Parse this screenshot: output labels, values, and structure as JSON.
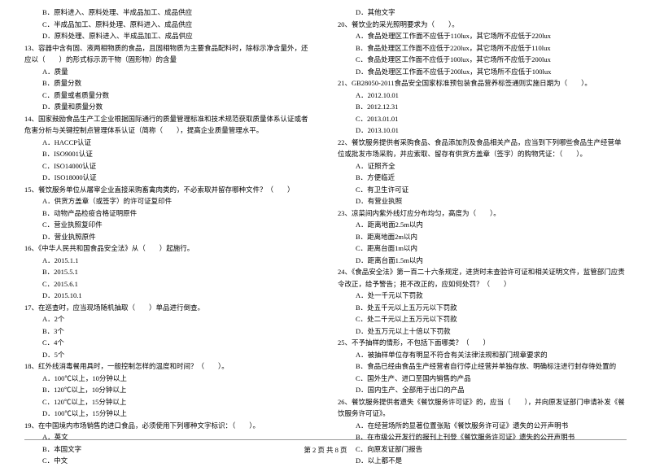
{
  "left": {
    "lines": [
      {
        "cls": "opt",
        "t": "B．原料进入、原料处理、半成品加工、成品供应"
      },
      {
        "cls": "opt",
        "t": "C．半成品加工、原料处理、原料进入、成品供应"
      },
      {
        "cls": "opt",
        "t": "D．原料处理、原料进入、半成品加工、成品供应"
      },
      {
        "cls": "q",
        "t": "13、容器中含有固、液两相物质的食品，且固相物质为主要食品配料时，除标示净含量外，还应以（　　）的形式标示沥干物（固形物）的含量"
      },
      {
        "cls": "opt",
        "t": "A．质量"
      },
      {
        "cls": "opt",
        "t": "B．质量分数"
      },
      {
        "cls": "opt",
        "t": "C．质量或者质量分数"
      },
      {
        "cls": "opt",
        "t": "D．质量和质量分数"
      },
      {
        "cls": "q",
        "t": "14、国家鼓励食品生产工企业根据国际通行的质量管理标准和技术规范获取质量体系认证或者危害分析与关键控制点管理体系认证（简称（　　），提高企业质量管理水平。"
      },
      {
        "cls": "opt",
        "t": "A．HACCP认证"
      },
      {
        "cls": "opt",
        "t": "B．ISO9001认证"
      },
      {
        "cls": "opt",
        "t": "C．ISO14000认证"
      },
      {
        "cls": "opt",
        "t": "D．ISO18000认证"
      },
      {
        "cls": "q",
        "t": "15、餐饮服务单位从屠宰企业直接采购畜禽肉类的，不必索取并留存哪种文件？（　　）"
      },
      {
        "cls": "opt",
        "t": "A．供货方盖章（或签字）的许可证复印件"
      },
      {
        "cls": "opt",
        "t": "B．动物产品检疫合格证明原件"
      },
      {
        "cls": "opt",
        "t": "C．营业执照复印件"
      },
      {
        "cls": "opt",
        "t": "D．营业执照原件"
      },
      {
        "cls": "q",
        "t": "16、《中华人民共和国食品安全法》从（　　）起施行。"
      },
      {
        "cls": "opt",
        "t": "A．2015.1.1"
      },
      {
        "cls": "opt",
        "t": "B．2015.5.1"
      },
      {
        "cls": "opt",
        "t": "C．2015.6.1"
      },
      {
        "cls": "opt",
        "t": "D．2015.10.1"
      },
      {
        "cls": "q",
        "t": "17、在巡查时，应当现场随机抽取（　　）单品进行倒查。"
      },
      {
        "cls": "opt",
        "t": "A．2个"
      },
      {
        "cls": "opt",
        "t": "B．3个"
      },
      {
        "cls": "opt",
        "t": "C．4个"
      },
      {
        "cls": "opt",
        "t": "D．5个"
      },
      {
        "cls": "q",
        "t": "18、红外线消毒餐用具时，一般控制怎样的温度和时间？（　　）。"
      },
      {
        "cls": "opt",
        "t": "A．100℃以上，10分钟以上"
      },
      {
        "cls": "opt",
        "t": "B．120℃以上，10分钟以上"
      },
      {
        "cls": "opt",
        "t": "C．120℃以上，15分钟以上"
      },
      {
        "cls": "opt",
        "t": "D．100℃以上，15分钟以上"
      },
      {
        "cls": "q",
        "t": "19、在中国境内市场销售的进口食品，必须使用下列哪种文字标识：（　　）。"
      },
      {
        "cls": "opt",
        "t": "A．英文"
      },
      {
        "cls": "opt",
        "t": "B．本国文字"
      },
      {
        "cls": "opt",
        "t": "C．中文"
      }
    ]
  },
  "right": {
    "lines": [
      {
        "cls": "opt",
        "t": "D．其他文字"
      },
      {
        "cls": "q",
        "t": "20、餐饮业的采光照明要求为（　　）。"
      },
      {
        "cls": "opt",
        "t": "A．食品处理区工作面不应低于110lux，其它场所不应低于220lux"
      },
      {
        "cls": "opt",
        "t": "B．食品处理区工作面不应低于220lux，其它场所不应低于110lux"
      },
      {
        "cls": "opt",
        "t": "C．食品处理区工作面不应低于100lux，其它场所不应低于200lux"
      },
      {
        "cls": "opt",
        "t": "D．食品处理区工作面不应低于200lux，其它场所不应低于100lux"
      },
      {
        "cls": "q",
        "t": "21、GB28050-2011食品安全国家标准预包装食品营养标签通则实施日期为（　　）。"
      },
      {
        "cls": "opt",
        "t": "A．2012.10.01"
      },
      {
        "cls": "opt",
        "t": "B．2012.12.31"
      },
      {
        "cls": "opt",
        "t": "C．2013.01.01"
      },
      {
        "cls": "opt",
        "t": "D．2013.10.01"
      },
      {
        "cls": "q",
        "t": "22、餐饮服务提供者采购食品、食品添加剂及食品相关产品，应当到下列哪些食品生产经营单位或批发市场采购，并应索取、留存有供货方盖章（签字）的购物凭证：（　　）。"
      },
      {
        "cls": "opt",
        "t": "A．证照齐全"
      },
      {
        "cls": "opt",
        "t": "B．方便临近"
      },
      {
        "cls": "opt",
        "t": "C．有卫生许可证"
      },
      {
        "cls": "opt",
        "t": "D．有营业执照"
      },
      {
        "cls": "q",
        "t": "23、凉菜间内紫外线灯应分布均匀，高度为（　　）。"
      },
      {
        "cls": "opt",
        "t": "A．距离地面2.5m以内"
      },
      {
        "cls": "opt",
        "t": "B．距离地面2m以内"
      },
      {
        "cls": "opt",
        "t": "C．距离台面1m以内"
      },
      {
        "cls": "opt",
        "t": "D．距离台面1.5m以内"
      },
      {
        "cls": "q",
        "t": "24、《食品安全法》第一百二十六条规定，进货时未查验许可证和相关证明文件，监管部门应责令改正，给予警告；拒不改正的，应如何处罚？（　　）"
      },
      {
        "cls": "opt",
        "t": "A．处一千元以下罚款"
      },
      {
        "cls": "opt",
        "t": "B．处五千元以上五万元以下罚款"
      },
      {
        "cls": "opt",
        "t": "C．处二千元以上五万元以下罚款"
      },
      {
        "cls": "opt",
        "t": "D．处五万元以上十倍以下罚款"
      },
      {
        "cls": "q",
        "t": "25、不予抽样的情形，不包括下面哪类？（　　）"
      },
      {
        "cls": "opt",
        "t": "A．被抽样单位存有明显不符合有关法律法规和部门规章要求的"
      },
      {
        "cls": "opt",
        "t": "B．食品已经由食品生产经营者自行停止经营并单独存放、明确标注进行封存待处置的"
      },
      {
        "cls": "opt",
        "t": "C．国外生产、进口至国内销售的产品"
      },
      {
        "cls": "opt",
        "t": "D．国内生产、全部用于出口的产品"
      },
      {
        "cls": "q",
        "t": "26、餐饮服务提供者遗失《餐饮服务许可证》的，应当（　　），并向原发证部门申请补发《餐饮服务许可证》。"
      },
      {
        "cls": "opt",
        "t": "A．在经营场所的显著位置张贴《餐饮服务许可证》遗失的公开声明书"
      },
      {
        "cls": "opt",
        "t": "B．在市级公开发行的报刊上刊登《餐饮服务许可证》遗失的公开声明书"
      },
      {
        "cls": "opt",
        "t": "C．向原发证部门报告"
      },
      {
        "cls": "opt",
        "t": "D．以上都不是"
      }
    ]
  },
  "footer": "第 2 页 共 8 页"
}
